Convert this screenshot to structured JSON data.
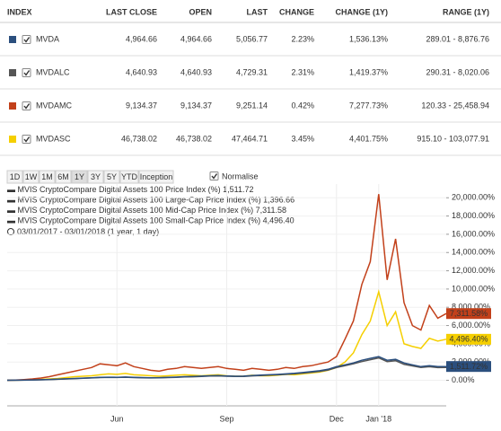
{
  "table": {
    "headers": [
      "INDEX",
      "LAST CLOSE",
      "OPEN",
      "LAST",
      "CHANGE",
      "CHANGE (1Y)",
      "RANGE (1Y)"
    ],
    "rows": [
      [
        "MVDA",
        "4,964.66",
        "4,964.66",
        "5,056.77",
        "2.23%",
        "1,536.13%",
        "289.01 - 8,876.76"
      ],
      [
        "MVDALC",
        "4,640.93",
        "4,640.93",
        "4,729.31",
        "2.31%",
        "1,419.37%",
        "290.31 - 8,020.06"
      ],
      [
        "MVDAMC",
        "9,134.37",
        "9,134.37",
        "9,251.14",
        "0.42%",
        "7,277.73%",
        "120.33 - 25,458.94"
      ],
      [
        "MVDASC",
        "46,738.02",
        "46,738.02",
        "47,464.71",
        "3.45%",
        "4,401.75%",
        "915.10 - 103,077.91"
      ]
    ]
  },
  "controls": {
    "periods": [
      "1D",
      "1W",
      "1M",
      "6M",
      "1Y",
      "3Y",
      "5Y",
      "YTD",
      "Inception"
    ],
    "selected": "1Y",
    "normalise": "Normalise"
  },
  "chart_data": {
    "type": "line",
    "date_range": "03/01/2017 - 03/01/2018  (1 year, 1 day)",
    "categories": [
      null,
      null,
      null,
      null,
      null,
      null,
      null,
      null,
      null,
      null,
      null,
      null,
      null,
      "Jun",
      null,
      null,
      null,
      null,
      null,
      null,
      null,
      null,
      null,
      null,
      null,
      null,
      "Sep",
      null,
      null,
      null,
      null,
      null,
      null,
      null,
      null,
      null,
      null,
      null,
      null,
      "Dec",
      null,
      null,
      null,
      null,
      "Jan '18",
      null,
      null,
      null,
      null,
      null,
      null,
      null,
      null
    ],
    "ylim": [
      -2800,
      21500
    ],
    "yticks": [
      {
        "value": 0,
        "label": "0.00%"
      },
      {
        "value": 2000,
        "label": "2,000.00%"
      },
      {
        "value": 4000,
        "label": "4,000.00%"
      },
      {
        "value": 6000,
        "label": "6,000.00%"
      },
      {
        "value": 8000,
        "label": "8,000.00%"
      },
      {
        "value": 10000,
        "label": "10,000.00%"
      },
      {
        "value": 12000,
        "label": "12,000.00%"
      },
      {
        "value": 14000,
        "label": "14,000.00%"
      },
      {
        "value": 16000,
        "label": "16,000.00%"
      },
      {
        "value": 18000,
        "label": "18,000.00%"
      },
      {
        "value": 20000,
        "label": "20,000.00%"
      }
    ],
    "grid": true,
    "series": [
      {
        "name": "MVIS CryptoCompare Digital Assets 100 Price Index (%)",
        "legend_value": "1,511.72",
        "end_label": "1,511.72%",
        "color": "#2b4f7e",
        "values": [
          0,
          10,
          20,
          40,
          60,
          90,
          120,
          160,
          200,
          240,
          280,
          320,
          340,
          330,
          360,
          320,
          300,
          280,
          290,
          320,
          350,
          400,
          420,
          460,
          500,
          520,
          480,
          450,
          460,
          520,
          560,
          600,
          640,
          700,
          760,
          850,
          950,
          1050,
          1200,
          1500,
          1700,
          1900,
          2200,
          2400,
          2600,
          2200,
          2300,
          1900,
          1700,
          1500,
          1600,
          1500,
          1511.72
        ]
      },
      {
        "name": "MVIS CryptoCompare Digital Assets 100 Large-Cap Price Index (%)",
        "legend_value": "1,396.66",
        "color": "#555555",
        "values": [
          0,
          8,
          18,
          35,
          55,
          80,
          110,
          150,
          185,
          220,
          260,
          300,
          315,
          305,
          335,
          300,
          280,
          260,
          270,
          300,
          330,
          370,
          390,
          430,
          465,
          485,
          450,
          420,
          430,
          485,
          520,
          560,
          600,
          650,
          710,
          790,
          880,
          980,
          1120,
          1400,
          1600,
          1800,
          2050,
          2250,
          2450,
          2050,
          2150,
          1750,
          1580,
          1400,
          1490,
          1390,
          1396.66
        ]
      },
      {
        "name": "MVIS CryptoCompare Digital Assets 100 Mid-Cap Price Index (%)",
        "legend_value": "7,311.58",
        "end_label": "7,311.58%",
        "color": "#c2401a",
        "values": [
          0,
          30,
          80,
          150,
          250,
          400,
          600,
          800,
          1000,
          1200,
          1400,
          1800,
          1700,
          1600,
          1900,
          1500,
          1300,
          1100,
          1000,
          1200,
          1300,
          1500,
          1400,
          1300,
          1400,
          1500,
          1300,
          1200,
          1100,
          1300,
          1200,
          1100,
          1200,
          1400,
          1300,
          1500,
          1600,
          1800,
          2000,
          2600,
          4500,
          6500,
          10500,
          13000,
          20400,
          11000,
          15500,
          8500,
          6000,
          5500,
          8200,
          6800,
          7311.58
        ]
      },
      {
        "name": "MVIS CryptoCompare Digital Assets 100 Small-Cap Price Index (%)",
        "legend_value": "4,496.40",
        "end_label": "4,496.40%",
        "color": "#f5cf00",
        "values": [
          0,
          10,
          30,
          60,
          100,
          150,
          200,
          300,
          400,
          450,
          500,
          600,
          700,
          650,
          750,
          600,
          550,
          500,
          450,
          500,
          550,
          600,
          550,
          500,
          550,
          600,
          500,
          450,
          450,
          550,
          500,
          500,
          550,
          650,
          600,
          700,
          800,
          900,
          1100,
          1400,
          2000,
          3000,
          5000,
          6500,
          9700,
          6000,
          7500,
          4000,
          3700,
          3500,
          4600,
          4300,
          4496.4
        ]
      }
    ]
  }
}
